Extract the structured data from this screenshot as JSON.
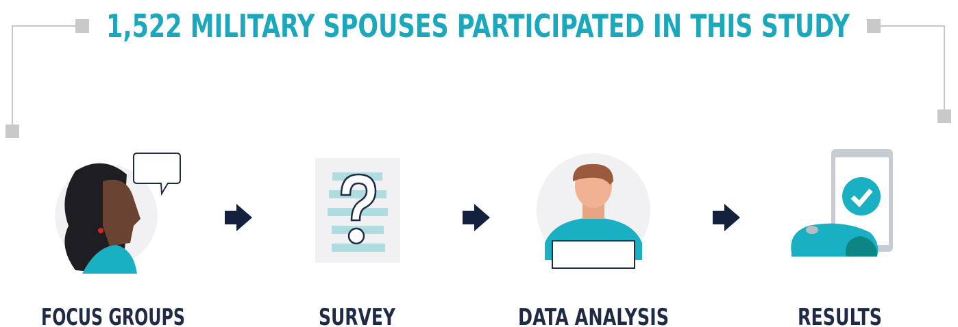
{
  "title": "1,522 MILITARY SPOUSES PARTICIPATED IN THIS STUDY",
  "steps": [
    {
      "label": "FOCUS GROUPS"
    },
    {
      "label": "SURVEY"
    },
    {
      "label": "DATA ANALYSIS"
    },
    {
      "label": "RESULTS"
    }
  ]
}
